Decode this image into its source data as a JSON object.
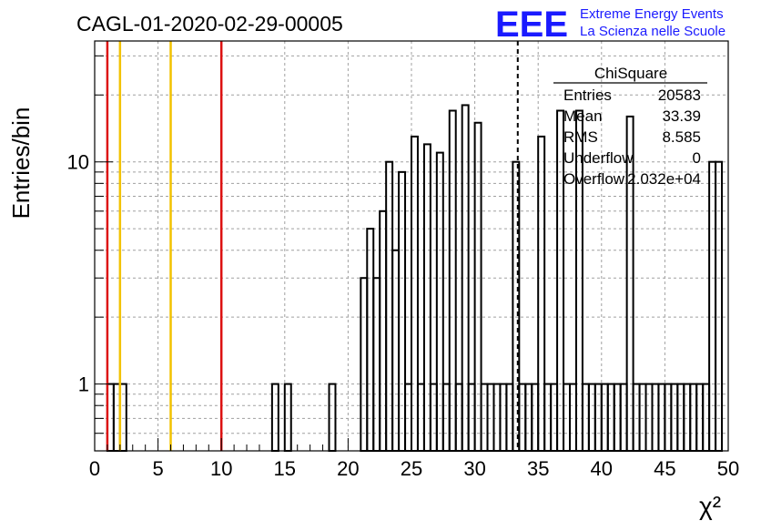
{
  "header": {
    "run_title": "CAGL-01-2020-02-29-00005",
    "logo_text": "EEE",
    "logo_line1": "Extreme Energy Events",
    "logo_line2": "La Scienza nelle Scuole"
  },
  "colors": {
    "logo_blue": "#1a1aff",
    "line_red": "#dd1111",
    "line_gold": "#f2c200"
  },
  "stats": {
    "title": "ChiSquare",
    "rows": [
      {
        "label": "Entries",
        "value": "20583"
      },
      {
        "label": "Mean",
        "value": "33.39"
      },
      {
        "label": "RMS",
        "value": "8.585"
      },
      {
        "label": "Underflow",
        "value": "0"
      },
      {
        "label": "Overflow",
        "value": "2.032e+04"
      }
    ]
  },
  "chart_data": {
    "type": "bar",
    "histogram": true,
    "ylabel": "Entries/bin",
    "xlabel": "χ²",
    "xlim": [
      0,
      50
    ],
    "ylim": [
      0.5,
      35
    ],
    "log_y": true,
    "grid": true,
    "bin_width": 0.5,
    "x_ticks": [
      "0",
      "5",
      "10",
      "15",
      "20",
      "25",
      "30",
      "35",
      "40",
      "45",
      "50"
    ],
    "y_ticks": [
      "1",
      "10"
    ],
    "bins": [
      {
        "x": 1.0,
        "value": 1
      },
      {
        "x": 1.5,
        "value": 1
      },
      {
        "x": 2.0,
        "value": 1
      },
      {
        "x": 14.0,
        "value": 1
      },
      {
        "x": 15.0,
        "value": 1
      },
      {
        "x": 18.5,
        "value": 1
      },
      {
        "x": 21.0,
        "value": 3
      },
      {
        "x": 21.5,
        "value": 5
      },
      {
        "x": 22.0,
        "value": 3
      },
      {
        "x": 22.5,
        "value": 6
      },
      {
        "x": 23.0,
        "value": 10
      },
      {
        "x": 23.5,
        "value": 4
      },
      {
        "x": 24.0,
        "value": 9
      },
      {
        "x": 24.5,
        "value": 1
      },
      {
        "x": 25.0,
        "value": 13
      },
      {
        "x": 25.5,
        "value": 1
      },
      {
        "x": 26.0,
        "value": 12
      },
      {
        "x": 26.5,
        "value": 1
      },
      {
        "x": 27.0,
        "value": 11
      },
      {
        "x": 27.5,
        "value": 1
      },
      {
        "x": 28.0,
        "value": 17
      },
      {
        "x": 28.5,
        "value": 1
      },
      {
        "x": 29.0,
        "value": 18
      },
      {
        "x": 29.5,
        "value": 1
      },
      {
        "x": 30.0,
        "value": 15
      },
      {
        "x": 30.5,
        "value": 1
      },
      {
        "x": 31.0,
        "value": 1
      },
      {
        "x": 31.5,
        "value": 1
      },
      {
        "x": 32.0,
        "value": 1
      },
      {
        "x": 32.5,
        "value": 1
      },
      {
        "x": 33.0,
        "value": 10
      },
      {
        "x": 33.5,
        "value": 1
      },
      {
        "x": 34.0,
        "value": 1
      },
      {
        "x": 34.5,
        "value": 1
      },
      {
        "x": 35.0,
        "value": 13
      },
      {
        "x": 35.5,
        "value": 1
      },
      {
        "x": 36.0,
        "value": 1
      },
      {
        "x": 36.5,
        "value": 17
      },
      {
        "x": 37.0,
        "value": 1
      },
      {
        "x": 37.5,
        "value": 1
      },
      {
        "x": 38.0,
        "value": 17
      },
      {
        "x": 38.5,
        "value": 1
      },
      {
        "x": 39.0,
        "value": 1
      },
      {
        "x": 39.5,
        "value": 1
      },
      {
        "x": 40.0,
        "value": 1
      },
      {
        "x": 40.5,
        "value": 1
      },
      {
        "x": 41.0,
        "value": 1
      },
      {
        "x": 41.5,
        "value": 1
      },
      {
        "x": 42.0,
        "value": 16
      },
      {
        "x": 42.5,
        "value": 1
      },
      {
        "x": 43.0,
        "value": 1
      },
      {
        "x": 43.5,
        "value": 1
      },
      {
        "x": 44.0,
        "value": 1
      },
      {
        "x": 44.5,
        "value": 1
      },
      {
        "x": 45.0,
        "value": 1
      },
      {
        "x": 45.5,
        "value": 1
      },
      {
        "x": 46.0,
        "value": 1
      },
      {
        "x": 46.5,
        "value": 1
      },
      {
        "x": 47.0,
        "value": 1
      },
      {
        "x": 47.5,
        "value": 1
      },
      {
        "x": 48.0,
        "value": 1
      },
      {
        "x": 48.5,
        "value": 10
      },
      {
        "x": 49.0,
        "value": 10
      }
    ],
    "vertical_lines": [
      {
        "x": 1,
        "color": "#dd1111",
        "style": "solid"
      },
      {
        "x": 2,
        "color": "#f2c200",
        "style": "solid"
      },
      {
        "x": 6,
        "color": "#f2c200",
        "style": "solid"
      },
      {
        "x": 10,
        "color": "#dd1111",
        "style": "solid"
      },
      {
        "x": 33.39,
        "color": "#000000",
        "style": "dashed"
      }
    ]
  }
}
